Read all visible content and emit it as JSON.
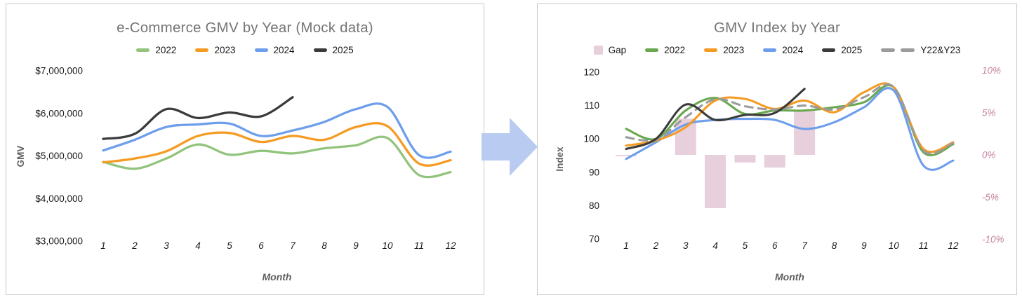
{
  "arrow": {
    "name": "right-arrow",
    "color": "#b9cbf1"
  },
  "chart_data": [
    {
      "type": "line",
      "title": "e-Commerce GMV by Year (Mock data)",
      "xlabel": "Month",
      "ylabel": "GMV",
      "categories": [
        "1",
        "2",
        "3",
        "4",
        "5",
        "6",
        "7",
        "8",
        "9",
        "10",
        "11",
        "12"
      ],
      "ylim": [
        3000000,
        7000000
      ],
      "grid": false,
      "legend_position": "top",
      "yticks": {
        "values": [
          3000000,
          4000000,
          5000000,
          6000000,
          7000000
        ],
        "labels": [
          "$3,000,000",
          "$4,000,000",
          "$5,000,000",
          "$6,000,000",
          "$7,000,000"
        ]
      },
      "legend": [
        {
          "label": "2022",
          "color": "#93c47d",
          "swatch": "line"
        },
        {
          "label": "2023",
          "color": "#f59b23",
          "swatch": "line"
        },
        {
          "label": "2024",
          "color": "#6d9eeb",
          "swatch": "line"
        },
        {
          "label": "2025",
          "color": "#3b3b3b",
          "swatch": "line"
        }
      ],
      "series": [
        {
          "name": "2022",
          "color": "#93c47d",
          "style": "solid",
          "values": [
            4860000,
            4700000,
            4940000,
            5270000,
            5030000,
            5120000,
            5060000,
            5180000,
            5250000,
            5420000,
            4550000,
            4620000
          ]
        },
        {
          "name": "2023",
          "color": "#f59b23",
          "style": "solid",
          "values": [
            4850000,
            4940000,
            5110000,
            5470000,
            5540000,
            5330000,
            5470000,
            5380000,
            5680000,
            5700000,
            4820000,
            4900000
          ]
        },
        {
          "name": "2024",
          "color": "#6d9eeb",
          "style": "solid",
          "values": [
            5130000,
            5380000,
            5680000,
            5740000,
            5760000,
            5470000,
            5600000,
            5800000,
            6100000,
            6150000,
            5020000,
            5100000
          ]
        },
        {
          "name": "2025",
          "color": "#3b3b3b",
          "style": "solid",
          "values": [
            5400000,
            5520000,
            6100000,
            5890000,
            6020000,
            5930000,
            6380000
          ]
        }
      ]
    },
    {
      "type": "line+bar",
      "title": "GMV Index by Year",
      "xlabel": "Month",
      "ylabel": "Index",
      "categories": [
        "1",
        "2",
        "3",
        "4",
        "5",
        "6",
        "7",
        "8",
        "9",
        "10",
        "11",
        "12"
      ],
      "ylim": [
        70,
        120
      ],
      "y2lim": [
        -10,
        10
      ],
      "grid": false,
      "legend_position": "top",
      "yticks": {
        "values": [
          70,
          80,
          90,
          100,
          110,
          120
        ],
        "labels": [
          "70",
          "80",
          "90",
          "100",
          "110",
          "120"
        ]
      },
      "y2ticks": {
        "values": [
          -10,
          -5,
          0,
          5,
          10
        ],
        "labels": [
          "-10%",
          "-5%",
          "0%",
          "5%",
          "10%"
        ]
      },
      "legend": [
        {
          "label": "Gap",
          "color": "#e8cfdc",
          "swatch": "square"
        },
        {
          "label": "2022",
          "color": "#6aa84f",
          "swatch": "line"
        },
        {
          "label": "2023",
          "color": "#f59b23",
          "swatch": "line"
        },
        {
          "label": "2024",
          "color": "#6d9eeb",
          "swatch": "line"
        },
        {
          "label": "2025",
          "color": "#3b3b3b",
          "swatch": "line"
        },
        {
          "label": "Y22&Y23",
          "color": "#9b9b9b",
          "swatch": "dashes"
        }
      ],
      "bar_series": {
        "name": "Gap",
        "color": "#e8cfdc",
        "axis": "right",
        "values": [
          -0.15,
          0,
          4.3,
          -6.3,
          -0.9,
          -1.5,
          5.2,
          0,
          0,
          0,
          0,
          0
        ]
      },
      "series": [
        {
          "name": "2024",
          "color": "#6d9eeb",
          "style": "solid",
          "values": [
            94,
            99,
            104.3,
            105.7,
            106,
            105.7,
            103,
            105,
            109.5,
            114.5,
            92,
            93.5
          ]
        },
        {
          "name": "2022",
          "color": "#6aa84f",
          "style": "solid",
          "values": [
            103,
            100,
            108.5,
            112.3,
            107.5,
            108.5,
            108.5,
            109.5,
            111,
            115.5,
            96,
            98.4
          ]
        },
        {
          "name": "2023",
          "color": "#f59b23",
          "style": "solid",
          "values": [
            98,
            99.5,
            103.5,
            111.5,
            112,
            109,
            111.5,
            108,
            114,
            115.5,
            97,
            99
          ]
        },
        {
          "name": "Y22&Y23",
          "color": "#9b9b9b",
          "style": "dashed",
          "values": [
            100.5,
            99.8,
            106.5,
            111.9,
            109.8,
            108.8,
            110,
            108.8,
            112.5,
            115.5,
            96.5,
            98.7
          ]
        },
        {
          "name": "2025",
          "color": "#3b3b3b",
          "style": "solid",
          "values": [
            97,
            100,
            110.3,
            105.7,
            107.2,
            107.8,
            115
          ]
        }
      ]
    }
  ],
  "text_colors": {
    "title": "#757575",
    "tick": "#1a1a1a",
    "axis_title": "#5f5f5f",
    "pink_axis": "#c4829f"
  }
}
